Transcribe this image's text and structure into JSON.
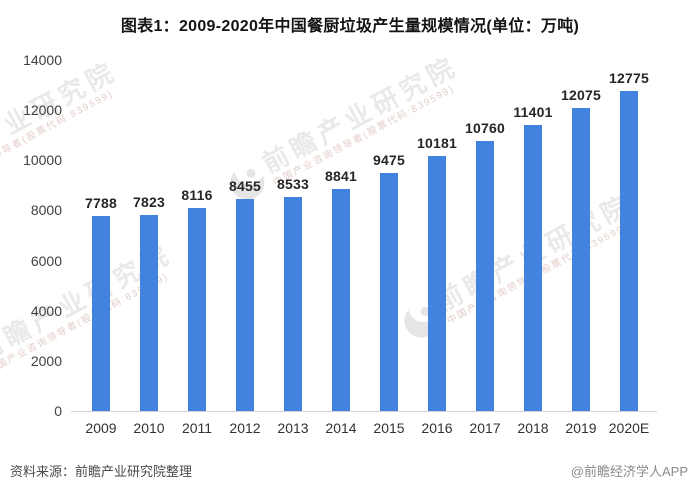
{
  "title": "图表1：2009-2020年中国餐厨垃圾产生量规模情况(单位：万吨)",
  "chart_data": {
    "type": "bar",
    "title": "图表1：2009-2020年中国餐厨垃圾产生量规模情况",
    "unit": "万吨",
    "categories": [
      "2009",
      "2010",
      "2011",
      "2012",
      "2013",
      "2014",
      "2015",
      "2016",
      "2017",
      "2018",
      "2019",
      "2020E"
    ],
    "values": [
      7788,
      7823,
      8116,
      8455,
      8533,
      8841,
      9475,
      10181,
      10760,
      11401,
      12075,
      12775
    ],
    "xlabel": "",
    "ylabel": "",
    "ylim": [
      0,
      14000
    ],
    "yticks": [
      0,
      2000,
      4000,
      6000,
      8000,
      10000,
      12000,
      14000
    ],
    "grid": false,
    "legend": "none",
    "data_labels": true,
    "bar_color": "#4283DF",
    "axis_line_color": "#d2d2d2",
    "tick_label_color": "#404040",
    "value_label_color": "#262626"
  },
  "footer": {
    "source": "资料来源：前瞻产业研究院整理",
    "credit": "@前瞻经济学人APP"
  },
  "watermark": {
    "brand": "前瞻产业研究院",
    "subtext": "中国产业咨询领导者(股票代码:839599)"
  }
}
